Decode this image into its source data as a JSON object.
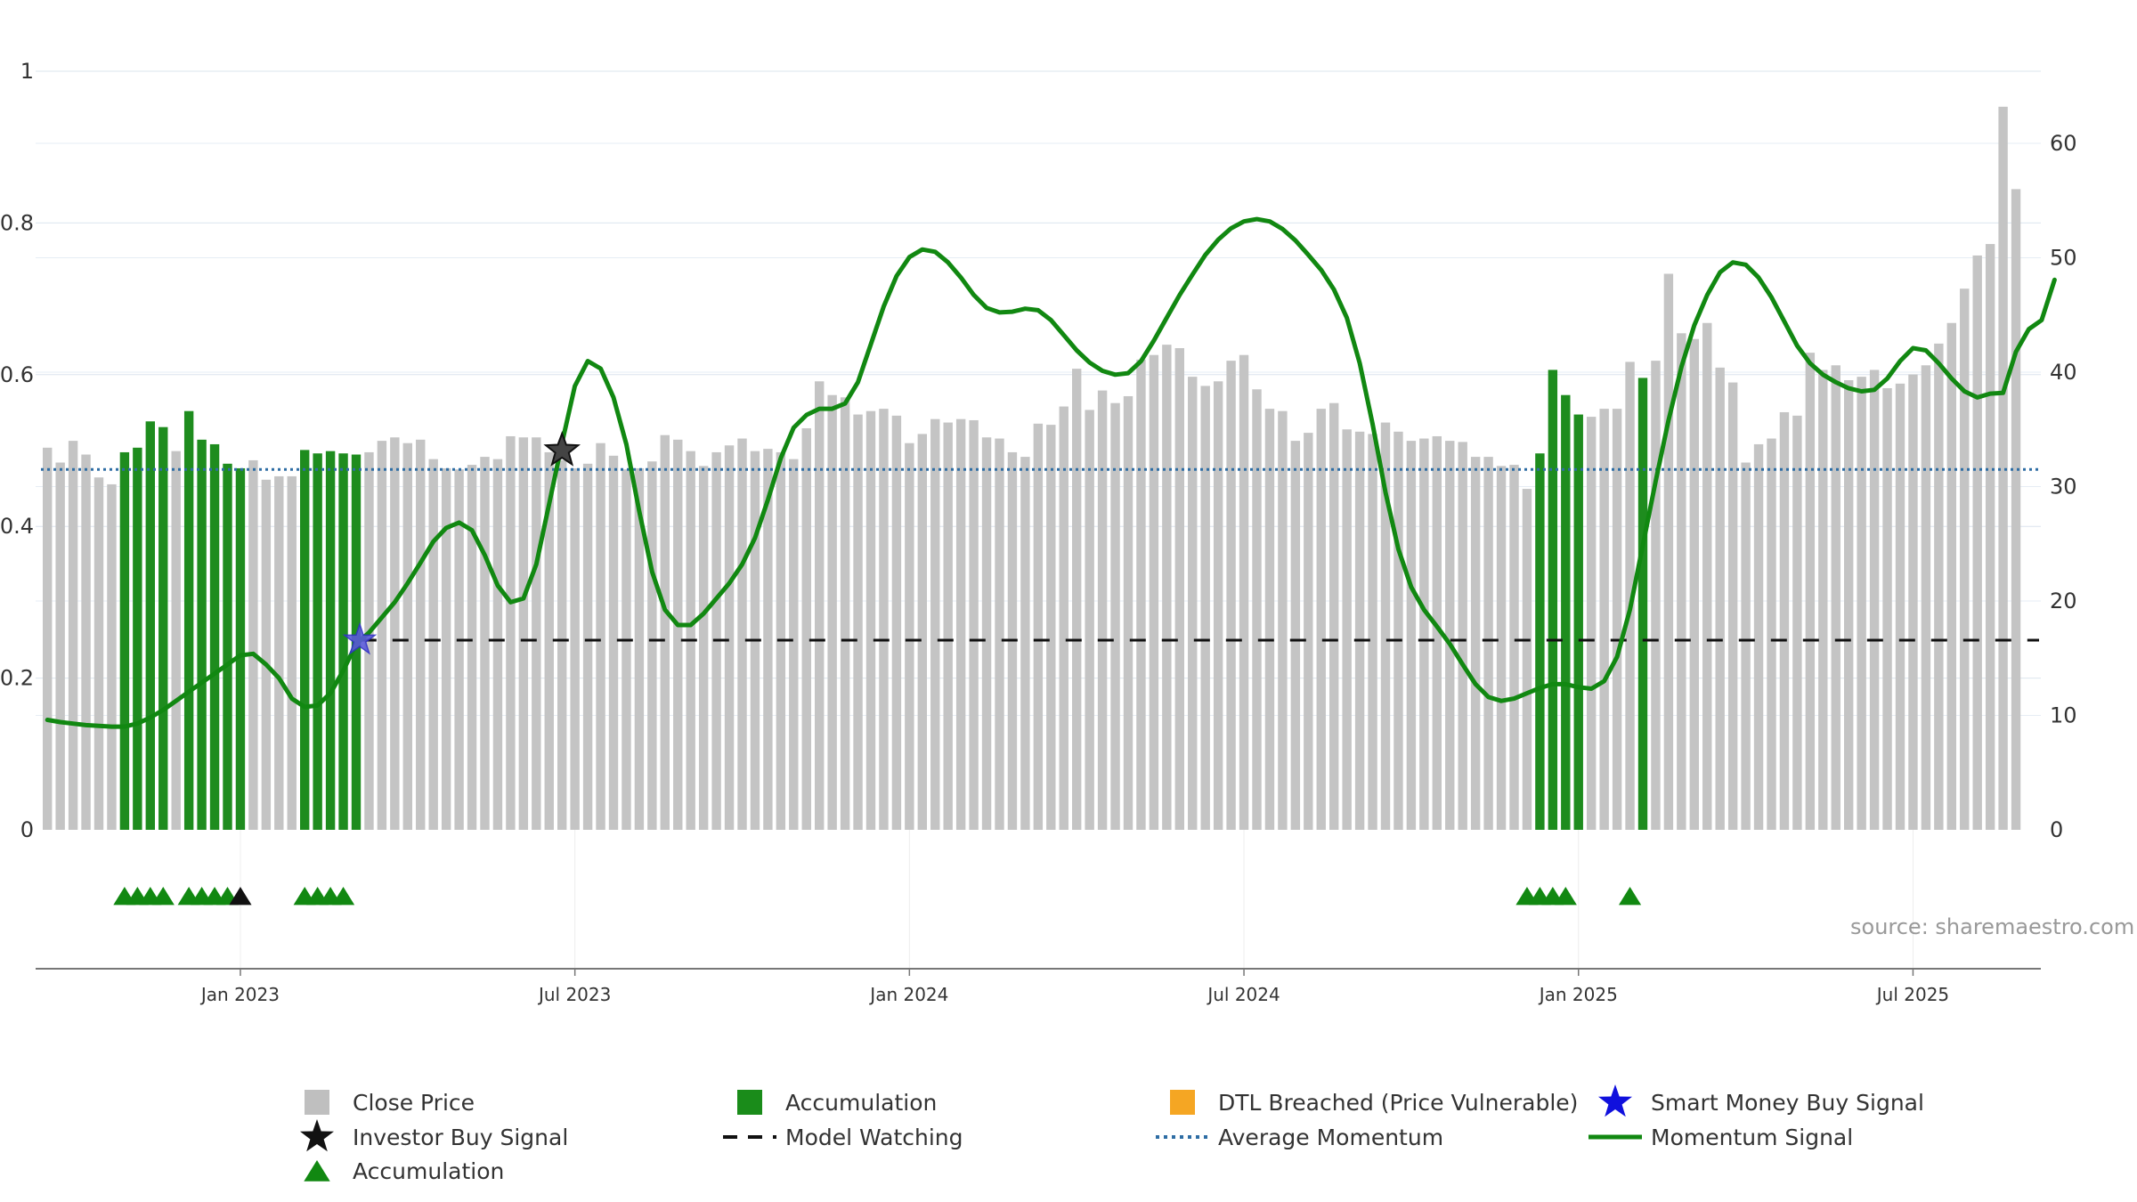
{
  "chart_data": {
    "type": "bar",
    "source": "source: sharemaestro.com",
    "x_ticks": [
      "Jan 2023",
      "Jul 2023",
      "Jan 2024",
      "Jul 2024",
      "Jan 2025",
      "Jul 2025"
    ],
    "x_tick_weeks": [
      15,
      41,
      67,
      93,
      119,
      145
    ],
    "y_left_ticks": [
      "0",
      "0.2",
      "0.4",
      "0.6",
      "0.8",
      "1"
    ],
    "y_left_ticks_values": [
      0,
      0.2,
      0.4,
      0.6,
      0.8,
      1
    ],
    "y_left_lim": [
      0,
      1
    ],
    "y_right_ticks": [
      "0",
      "10",
      "20",
      "30",
      "40",
      "50",
      "60"
    ],
    "y_right_ticks_values": [
      0,
      10,
      20,
      30,
      40,
      50,
      60
    ],
    "y_right_lim": [
      0,
      66
    ],
    "close_price": [
      33.4,
      32.1,
      34.0,
      32.8,
      30.8,
      30.2,
      33.0,
      33.4,
      35.7,
      35.2,
      33.1,
      36.6,
      34.1,
      33.7,
      32.0,
      31.6,
      32.3,
      30.6,
      30.9,
      30.9,
      33.2,
      32.9,
      33.1,
      32.9,
      32.8,
      33.0,
      34.0,
      34.3,
      33.8,
      34.1,
      32.4,
      31.6,
      31.5,
      31.9,
      32.6,
      32.4,
      34.4,
      34.3,
      34.3,
      33.0,
      32.3,
      31.6,
      32.0,
      33.8,
      32.7,
      31.5,
      31.6,
      32.2,
      34.5,
      34.1,
      33.1,
      31.8,
      33.0,
      33.6,
      34.2,
      33.1,
      33.3,
      33.0,
      32.4,
      35.1,
      39.2,
      38.0,
      37.8,
      36.3,
      36.6,
      36.8,
      36.2,
      33.8,
      34.6,
      35.9,
      35.6,
      35.9,
      35.8,
      34.3,
      34.2,
      33.0,
      32.6,
      35.5,
      35.4,
      37.0,
      40.3,
      36.7,
      38.4,
      37.3,
      37.9,
      41.1,
      41.5,
      42.4,
      42.1,
      39.6,
      38.8,
      39.2,
      41.0,
      41.5,
      38.5,
      36.8,
      36.6,
      34.0,
      34.7,
      36.8,
      37.3,
      35.0,
      34.8,
      34.6,
      35.6,
      34.8,
      34.0,
      34.2,
      34.4,
      34.0,
      33.9,
      32.6,
      32.6,
      31.8,
      31.9,
      29.8,
      32.9,
      40.2,
      38.0,
      36.3,
      36.1,
      36.8,
      36.8,
      40.9,
      39.5,
      41.0,
      48.6,
      43.4,
      42.9,
      44.3,
      40.4,
      39.1,
      32.1,
      33.7,
      34.2,
      36.5,
      36.2,
      41.7,
      40.2,
      40.6,
      39.3,
      39.6,
      40.2,
      38.6,
      39.0,
      39.8,
      40.6,
      42.5,
      44.3,
      47.3,
      50.2,
      51.2,
      63.2,
      56.0
    ],
    "accumulation_weeks": [
      6,
      7,
      8,
      9,
      11,
      12,
      13,
      14,
      15,
      20,
      21,
      22,
      23,
      24,
      116,
      117,
      118,
      119,
      124
    ],
    "accumulation_triangle_weeks": [
      6,
      7,
      8,
      9,
      11,
      12,
      13,
      14,
      20,
      21,
      22,
      23,
      115,
      116,
      117,
      118,
      123
    ],
    "investor_buy_signal_markers": [
      {
        "week": 15,
        "y": -0.09
      },
      {
        "week": 40,
        "y": 0.5
      }
    ],
    "smart_money_buy_signal": {
      "week": 24,
      "y": 0.25
    },
    "model_watching_level": 0.25,
    "model_watching_from_week": 24,
    "average_momentum": 0.475,
    "momentum_signal": [
      [
        0,
        0.145
      ],
      [
        1,
        0.142
      ],
      [
        2,
        0.14
      ],
      [
        3,
        0.138
      ],
      [
        4,
        0.137
      ],
      [
        5,
        0.136
      ],
      [
        6,
        0.136
      ],
      [
        7,
        0.14
      ],
      [
        8,
        0.148
      ],
      [
        9,
        0.158
      ],
      [
        10,
        0.17
      ],
      [
        11,
        0.182
      ],
      [
        12,
        0.194
      ],
      [
        13,
        0.206
      ],
      [
        14,
        0.218
      ],
      [
        15,
        0.23
      ],
      [
        16,
        0.232
      ],
      [
        17,
        0.218
      ],
      [
        18,
        0.2
      ],
      [
        19,
        0.173
      ],
      [
        20,
        0.162
      ],
      [
        21,
        0.164
      ],
      [
        22,
        0.18
      ],
      [
        23,
        0.21
      ],
      [
        24,
        0.245
      ],
      [
        25,
        0.26
      ],
      [
        26,
        0.28
      ],
      [
        27,
        0.3
      ],
      [
        28,
        0.325
      ],
      [
        29,
        0.352
      ],
      [
        30,
        0.38
      ],
      [
        31,
        0.398
      ],
      [
        32,
        0.405
      ],
      [
        33,
        0.395
      ],
      [
        34,
        0.362
      ],
      [
        35,
        0.322
      ],
      [
        36,
        0.3
      ],
      [
        37,
        0.305
      ],
      [
        38,
        0.35
      ],
      [
        39,
        0.43
      ],
      [
        40,
        0.51
      ],
      [
        41,
        0.585
      ],
      [
        42,
        0.618
      ],
      [
        43,
        0.608
      ],
      [
        44,
        0.57
      ],
      [
        45,
        0.508
      ],
      [
        46,
        0.42
      ],
      [
        47,
        0.34
      ],
      [
        48,
        0.29
      ],
      [
        49,
        0.27
      ],
      [
        50,
        0.27
      ],
      [
        51,
        0.285
      ],
      [
        52,
        0.305
      ],
      [
        53,
        0.325
      ],
      [
        54,
        0.35
      ],
      [
        55,
        0.385
      ],
      [
        56,
        0.435
      ],
      [
        57,
        0.49
      ],
      [
        58,
        0.53
      ],
      [
        59,
        0.547
      ],
      [
        60,
        0.555
      ],
      [
        61,
        0.555
      ],
      [
        62,
        0.562
      ],
      [
        63,
        0.59
      ],
      [
        64,
        0.64
      ],
      [
        65,
        0.69
      ],
      [
        66,
        0.73
      ],
      [
        67,
        0.755
      ],
      [
        68,
        0.765
      ],
      [
        69,
        0.762
      ],
      [
        70,
        0.748
      ],
      [
        71,
        0.728
      ],
      [
        72,
        0.705
      ],
      [
        73,
        0.688
      ],
      [
        74,
        0.682
      ],
      [
        75,
        0.683
      ],
      [
        76,
        0.687
      ],
      [
        77,
        0.685
      ],
      [
        78,
        0.672
      ],
      [
        79,
        0.652
      ],
      [
        80,
        0.632
      ],
      [
        81,
        0.616
      ],
      [
        82,
        0.605
      ],
      [
        83,
        0.6
      ],
      [
        84,
        0.602
      ],
      [
        85,
        0.618
      ],
      [
        86,
        0.645
      ],
      [
        87,
        0.675
      ],
      [
        88,
        0.705
      ],
      [
        89,
        0.732
      ],
      [
        90,
        0.758
      ],
      [
        91,
        0.778
      ],
      [
        92,
        0.793
      ],
      [
        93,
        0.802
      ],
      [
        94,
        0.805
      ],
      [
        95,
        0.802
      ],
      [
        96,
        0.792
      ],
      [
        97,
        0.777
      ],
      [
        98,
        0.758
      ],
      [
        99,
        0.738
      ],
      [
        100,
        0.712
      ],
      [
        101,
        0.675
      ],
      [
        102,
        0.615
      ],
      [
        103,
        0.535
      ],
      [
        104,
        0.445
      ],
      [
        105,
        0.37
      ],
      [
        106,
        0.32
      ],
      [
        107,
        0.29
      ],
      [
        108,
        0.268
      ],
      [
        109,
        0.245
      ],
      [
        110,
        0.218
      ],
      [
        111,
        0.192
      ],
      [
        112,
        0.175
      ],
      [
        113,
        0.17
      ],
      [
        114,
        0.173
      ],
      [
        115,
        0.18
      ],
      [
        116,
        0.187
      ],
      [
        117,
        0.192
      ],
      [
        118,
        0.192
      ],
      [
        119,
        0.188
      ],
      [
        120,
        0.186
      ],
      [
        121,
        0.196
      ],
      [
        122,
        0.228
      ],
      [
        123,
        0.29
      ],
      [
        124,
        0.375
      ],
      [
        125,
        0.46
      ],
      [
        126,
        0.54
      ],
      [
        127,
        0.61
      ],
      [
        128,
        0.665
      ],
      [
        129,
        0.705
      ],
      [
        130,
        0.735
      ],
      [
        131,
        0.748
      ],
      [
        132,
        0.745
      ],
      [
        133,
        0.728
      ],
      [
        134,
        0.702
      ],
      [
        135,
        0.67
      ],
      [
        136,
        0.638
      ],
      [
        137,
        0.615
      ],
      [
        138,
        0.6
      ],
      [
        139,
        0.59
      ],
      [
        140,
        0.582
      ],
      [
        141,
        0.578
      ],
      [
        142,
        0.58
      ],
      [
        143,
        0.595
      ],
      [
        144,
        0.618
      ],
      [
        145,
        0.635
      ],
      [
        146,
        0.632
      ],
      [
        147,
        0.615
      ],
      [
        148,
        0.595
      ],
      [
        149,
        0.578
      ],
      [
        150,
        0.57
      ],
      [
        151,
        0.575
      ],
      [
        152,
        0.576
      ],
      [
        153,
        0.63
      ],
      [
        154,
        0.66
      ],
      [
        155,
        0.672
      ],
      [
        156,
        0.725
      ]
    ],
    "legend": [
      {
        "label": "Close Price",
        "color": "#bfbfbf",
        "marker": "square"
      },
      {
        "label": "Accumulation",
        "color": "#1a8c1a",
        "marker": "square"
      },
      {
        "label": "DTL Breached (Price Vulnerable)",
        "color": "#f5a623",
        "marker": "square"
      },
      {
        "label": "Smart Money Buy Signal",
        "color": "#1010dd",
        "marker": "star"
      },
      {
        "label": "Investor Buy Signal",
        "color": "#111111",
        "marker": "star"
      },
      {
        "label": "Model Watching",
        "color": "#111111",
        "marker": "dash"
      },
      {
        "label": "Average Momentum",
        "color": "#2e6da4",
        "marker": "dotted"
      },
      {
        "label": "Momentum Signal",
        "color": "#118811",
        "marker": "line"
      },
      {
        "label": "Accumulation",
        "color": "#118811",
        "marker": "triangle"
      }
    ],
    "colors": {
      "close_bar": "#c4c4c4",
      "accumulation_bar": "#1e8c1e",
      "momentum": "#118811",
      "average_momentum": "#2e6da4",
      "model_watching": "#111111",
      "smart_money_star": "#5a5ad8",
      "investor_star": "#111111",
      "grid": "#dbe4ee"
    }
  }
}
